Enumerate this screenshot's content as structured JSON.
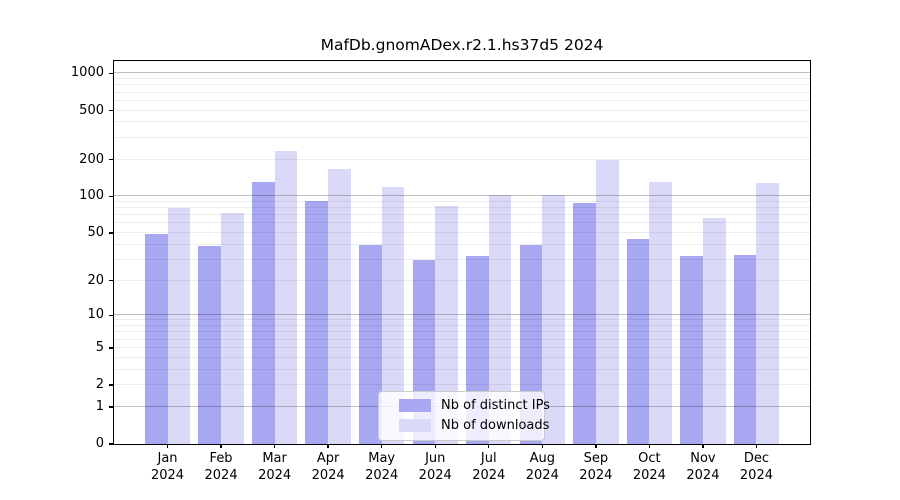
{
  "title": "MafDb.gnomADex.r2.1.hs37d5 2024",
  "chart_data": {
    "type": "bar",
    "title": "MafDb.gnomADex.r2.1.hs37d5 2024",
    "categories": [
      "Jan",
      "Feb",
      "Mar",
      "Apr",
      "May",
      "Jun",
      "Jul",
      "Aug",
      "Sep",
      "Oct",
      "Nov",
      "Dec"
    ],
    "year_label": "2024",
    "series": [
      {
        "name": "Nb of distinct IPs",
        "color": "#a7a7f2",
        "values": [
          49,
          39,
          130,
          92,
          40,
          30,
          32,
          40,
          88,
          45,
          32,
          33
        ]
      },
      {
        "name": "Nb of downloads",
        "color": "#dadaf8",
        "values": [
          80,
          73,
          235,
          168,
          119,
          84,
          103,
          103,
          200,
          130,
          66,
          128
        ]
      }
    ],
    "yscale": "log1p",
    "ylim": [
      0,
      1260
    ],
    "yticks": [
      0,
      1,
      2,
      5,
      10,
      20,
      50,
      100,
      200,
      500,
      1000
    ],
    "xlabel": "",
    "ylabel": "",
    "grid": true,
    "legend_position": "lower center inside"
  }
}
